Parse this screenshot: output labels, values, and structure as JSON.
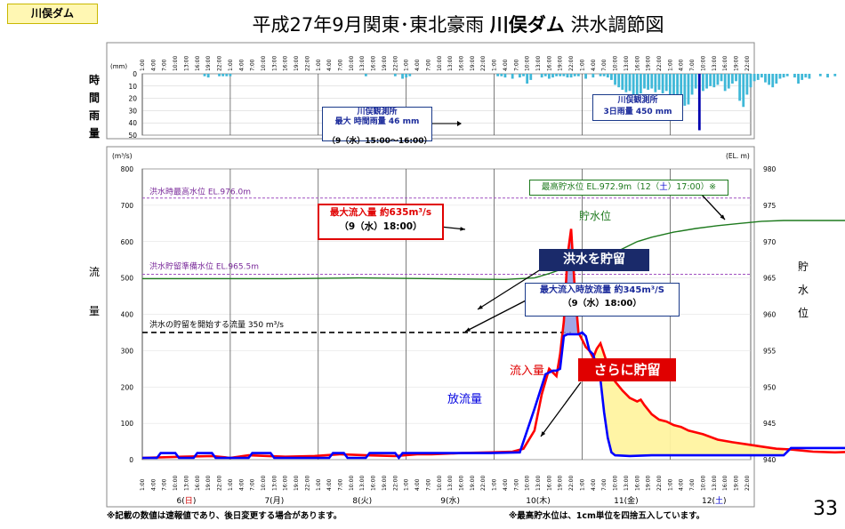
{
  "header": {
    "tag": "川俣ダム",
    "title_prefix": "平成27年9月関東･東北豪雨",
    "title_dam": "川俣ダム",
    "title_suffix": "洪水調節図"
  },
  "side_labels": {
    "rain": [
      "時",
      "間",
      "雨",
      "量"
    ],
    "flow": [
      "流",
      "量"
    ],
    "level": [
      "貯",
      "水",
      "位"
    ]
  },
  "units": {
    "rain": "(mm)",
    "flow": "(m³/s)",
    "level": "(EL. m)"
  },
  "day_labels": [
    {
      "text": "6(",
      "day": "日",
      "close": ")",
      "color": "#d00000"
    },
    {
      "text": "7(月)",
      "day": "",
      "close": "",
      "color": "#000"
    },
    {
      "text": "8(火)",
      "day": "",
      "close": "",
      "color": "#000"
    },
    {
      "text": "9(水)",
      "day": "",
      "close": "",
      "color": "#000"
    },
    {
      "text": "10(木)",
      "day": "",
      "close": "",
      "color": "#000"
    },
    {
      "text": "11(金)",
      "day": "",
      "close": "",
      "color": "#000"
    },
    {
      "text": "12(",
      "day": "土",
      "close": ")",
      "color": "#0000d0"
    }
  ],
  "annotations": {
    "rain_max_line1": "川俣観測所",
    "rain_max_line2": "最大 時間雨量 46 mm",
    "rain_max_line3": "（9（水）15:00～16:00）",
    "rain_total_line1": "川俣観測所",
    "rain_total_line2": "3日雨量 450 mm",
    "hwl": "洪水時最高水位 EL.976.0m",
    "fsl": "洪水貯留準備水位 EL.965.5m",
    "flood_threshold": "洪水の貯留を開始する流量 350 m³/s",
    "max_inflow_line1": "最大流入量 約635m³/s",
    "max_inflow_line2": "（9（水）18:00）",
    "max_level": "最高貯水位 EL.972.9m（12（",
    "max_level_day": "土",
    "max_level_end": "）17:00）※",
    "storage_label": "貯水位",
    "store_flood": "洪水を貯留",
    "max_release_line1": "最大流入時放流量 約345m³/S",
    "max_release_line2": "（9（水）18:00）",
    "inflow_label": "流入量",
    "outflow_label": "放流量",
    "more_storage": "さらに貯留"
  },
  "footer": {
    "left": "※記載の数値は速報値であり、後日変更する場合があります。",
    "right": "※最高貯水位は、1cm単位を四捨五入しています。",
    "page": "33"
  },
  "chart_data": [
    {
      "type": "bar",
      "title": "時間雨量",
      "ylabel": "(mm)",
      "ylim": [
        50,
        0
      ],
      "y_ticks": [
        0,
        10,
        20,
        30,
        40,
        50
      ],
      "x_unit": "hours from 6日 1:00",
      "series": [
        {
          "name": "時間雨量",
          "color": "#3fb8d8",
          "points": [
            [
              18,
              2
            ],
            [
              19,
              3
            ],
            [
              22,
              2
            ],
            [
              23,
              2
            ],
            [
              24,
              2
            ],
            [
              25,
              2
            ],
            [
              62,
              2
            ],
            [
              70,
              2
            ],
            [
              72,
              4
            ],
            [
              73,
              3
            ],
            [
              74,
              2
            ],
            [
              98,
              2
            ],
            [
              99,
              2
            ],
            [
              100,
              3
            ],
            [
              102,
              4
            ],
            [
              104,
              3
            ],
            [
              105,
              2
            ],
            [
              106,
              8
            ],
            [
              107,
              5
            ],
            [
              110,
              3
            ],
            [
              111,
              2
            ],
            [
              112,
              4
            ],
            [
              113,
              3
            ],
            [
              114,
              2
            ],
            [
              115,
              2
            ],
            [
              116,
              2
            ],
            [
              117,
              3
            ],
            [
              118,
              3
            ],
            [
              119,
              2
            ],
            [
              120,
              2
            ],
            [
              122,
              4
            ],
            [
              124,
              3
            ],
            [
              126,
              2
            ],
            [
              127,
              2
            ],
            [
              128,
              3
            ],
            [
              129,
              5
            ],
            [
              130,
              9
            ],
            [
              131,
              11
            ],
            [
              132,
              13
            ],
            [
              133,
              15
            ],
            [
              134,
              14
            ],
            [
              135,
              17
            ],
            [
              136,
              18
            ],
            [
              137,
              16
            ],
            [
              138,
              12
            ],
            [
              139,
              13
            ],
            [
              140,
              12
            ],
            [
              141,
              15
            ],
            [
              142,
              13
            ],
            [
              143,
              16
            ],
            [
              144,
              14
            ],
            [
              145,
              18
            ],
            [
              146,
              20
            ],
            [
              147,
              22
            ],
            [
              148,
              24
            ],
            [
              149,
              26
            ],
            [
              150,
              25
            ],
            [
              151,
              17
            ],
            [
              152,
              12
            ],
            [
              153,
              46
            ],
            [
              154,
              14
            ],
            [
              155,
              12
            ],
            [
              156,
              10
            ],
            [
              157,
              11
            ],
            [
              158,
              9
            ],
            [
              159,
              6
            ],
            [
              160,
              14
            ],
            [
              161,
              12
            ],
            [
              162,
              8
            ],
            [
              163,
              6
            ],
            [
              164,
              22
            ],
            [
              165,
              27
            ],
            [
              166,
              17
            ],
            [
              167,
              11
            ],
            [
              168,
              6
            ],
            [
              169,
              5
            ],
            [
              170,
              3
            ],
            [
              171,
              7
            ],
            [
              172,
              9
            ],
            [
              173,
              11
            ],
            [
              174,
              8
            ],
            [
              175,
              4
            ],
            [
              176,
              3
            ],
            [
              177,
              2
            ],
            [
              179,
              3
            ],
            [
              180,
              8
            ],
            [
              181,
              5
            ],
            [
              182,
              3
            ],
            [
              183,
              4
            ],
            [
              186,
              2
            ],
            [
              188,
              3
            ],
            [
              190,
              2
            ],
            [
              199,
              2
            ],
            [
              200,
              2
            ],
            [
              203,
              2
            ]
          ]
        }
      ]
    },
    {
      "type": "line",
      "title": "洪水調節図",
      "xlabel": "",
      "ylabel": "(m³/s)",
      "ylim": [
        0,
        800
      ],
      "y_ticks": [
        0,
        100,
        200,
        300,
        400,
        500,
        600,
        700,
        800
      ],
      "y2label": "(EL. m)",
      "y2lim": [
        940,
        980
      ],
      "y2_ticks": [
        940,
        945,
        950,
        955,
        960,
        965,
        970,
        975,
        980
      ],
      "x_start_hour": 1,
      "x_end_hour": 167,
      "x_tick_labels": [
        "1:00",
        "4:00",
        "7:00",
        "10:00",
        "13:00",
        "16:00",
        "19:00",
        "22:00"
      ],
      "reference_lines": [
        {
          "label": "洪水時最高水位 EL.976.0m",
          "axis": "y2",
          "value": 976.0
        },
        {
          "label": "洪水貯留準備水位 EL.965.5m",
          "axis": "y2",
          "value": 965.5
        },
        {
          "label": "洪水の貯留を開始する流量 350 m³/s",
          "axis": "y",
          "value": 350
        }
      ],
      "series": [
        {
          "name": "流入量",
          "color": "#ff0000",
          "axis": "y",
          "points": [
            [
              1,
              5
            ],
            [
              12,
              8
            ],
            [
              20,
              10
            ],
            [
              25,
              5
            ],
            [
              30,
              12
            ],
            [
              40,
              8
            ],
            [
              48,
              10
            ],
            [
              55,
              15
            ],
            [
              62,
              12
            ],
            [
              70,
              10
            ],
            [
              76,
              15
            ],
            [
              80,
              15
            ],
            [
              88,
              18
            ],
            [
              96,
              20
            ],
            [
              102,
              22
            ],
            [
              105,
              30
            ],
            [
              108,
              80
            ],
            [
              110,
              180
            ],
            [
              112,
              250
            ],
            [
              113,
              240
            ],
            [
              114,
              230
            ],
            [
              115,
              290
            ],
            [
              116,
              380
            ],
            [
              117,
              560
            ],
            [
              118,
              635
            ],
            [
              119,
              470
            ],
            [
              120,
              350
            ],
            [
              121,
              330
            ],
            [
              122,
              310
            ],
            [
              123,
              300
            ],
            [
              124,
              280
            ],
            [
              125,
              305
            ],
            [
              126,
              320
            ],
            [
              127,
              290
            ],
            [
              128,
              260
            ],
            [
              130,
              215
            ],
            [
              132,
              190
            ],
            [
              134,
              170
            ],
            [
              136,
              160
            ],
            [
              137,
              165
            ],
            [
              138,
              150
            ],
            [
              140,
              125
            ],
            [
              142,
              110
            ],
            [
              144,
              105
            ],
            [
              146,
              95
            ],
            [
              148,
              90
            ],
            [
              150,
              80
            ],
            [
              154,
              70
            ],
            [
              158,
              55
            ],
            [
              162,
              48
            ],
            [
              166,
              42
            ],
            [
              170,
              36
            ],
            [
              174,
              30
            ],
            [
              178,
              28
            ],
            [
              184,
              22
            ],
            [
              190,
              20
            ],
            [
              196,
              22
            ],
            [
              199,
              18
            ]
          ]
        },
        {
          "name": "放流量",
          "color": "#0000ff",
          "axis": "y",
          "points": [
            [
              1,
              5
            ],
            [
              5,
              5
            ],
            [
              6,
              18
            ],
            [
              10,
              18
            ],
            [
              11,
              5
            ],
            [
              15,
              5
            ],
            [
              16,
              18
            ],
            [
              20,
              18
            ],
            [
              21,
              5
            ],
            [
              30,
              5
            ],
            [
              31,
              18
            ],
            [
              36,
              18
            ],
            [
              37,
              5
            ],
            [
              52,
              5
            ],
            [
              53,
              18
            ],
            [
              56,
              18
            ],
            [
              57,
              5
            ],
            [
              62,
              5
            ],
            [
              63,
              18
            ],
            [
              70,
              18
            ],
            [
              71,
              5
            ],
            [
              72,
              18
            ],
            [
              96,
              18
            ],
            [
              104,
              20
            ],
            [
              108,
              140
            ],
            [
              111,
              235
            ],
            [
              113,
              245
            ],
            [
              114,
              245
            ],
            [
              115,
              250
            ],
            [
              116,
              340
            ],
            [
              117,
              345
            ],
            [
              118,
              345
            ],
            [
              119,
              345
            ],
            [
              120,
              345
            ],
            [
              121,
              350
            ],
            [
              122,
              340
            ],
            [
              123,
              300
            ],
            [
              124,
              290
            ],
            [
              126,
              220
            ],
            [
              127,
              130
            ],
            [
              128,
              60
            ],
            [
              129,
              20
            ],
            [
              130,
              12
            ],
            [
              134,
              10
            ],
            [
              140,
              12
            ],
            [
              148,
              12
            ],
            [
              160,
              12
            ],
            [
              170,
              12
            ],
            [
              176,
              12
            ],
            [
              178,
              32
            ],
            [
              180,
              32
            ],
            [
              199,
              32
            ]
          ]
        },
        {
          "name": "貯水位",
          "color": "#1e7a1e",
          "axis": "y2",
          "points": [
            [
              1,
              964.9
            ],
            [
              20,
              964.9
            ],
            [
              40,
              964.9
            ],
            [
              60,
              965.0
            ],
            [
              80,
              964.9
            ],
            [
              100,
              964.8
            ],
            [
              108,
              965.0
            ],
            [
              112,
              965.6
            ],
            [
              116,
              966.3
            ],
            [
              118,
              966.7
            ],
            [
              120,
              966.6
            ],
            [
              124,
              967.0
            ],
            [
              128,
              968.0
            ],
            [
              132,
              969.0
            ],
            [
              136,
              970.0
            ],
            [
              140,
              970.6
            ],
            [
              146,
              971.3
            ],
            [
              152,
              971.8
            ],
            [
              158,
              972.2
            ],
            [
              164,
              972.5
            ],
            [
              170,
              972.8
            ],
            [
              176,
              972.9
            ],
            [
              199,
              972.9
            ]
          ]
        }
      ]
    }
  ]
}
